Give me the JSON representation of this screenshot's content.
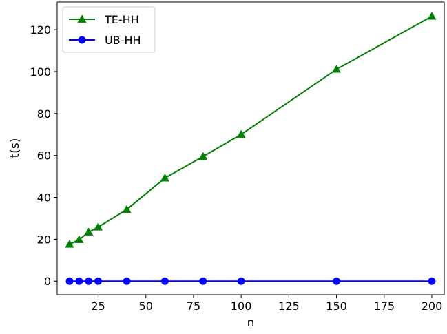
{
  "chart_data": {
    "type": "line",
    "xlabel": "n",
    "ylabel": "t(s)",
    "xlim": [
      3.5,
      206.5
    ],
    "ylim": [
      -6.5,
      133.2
    ],
    "xticks": [
      25,
      50,
      75,
      100,
      125,
      150,
      175,
      200
    ],
    "yticks": [
      0,
      20,
      40,
      60,
      80,
      100,
      120
    ],
    "grid": false,
    "legend_position": "upper-left",
    "series": [
      {
        "name": "TE-HH",
        "color": "#008000",
        "marker": "triangle",
        "x": [
          10,
          15,
          20,
          25,
          40,
          60,
          80,
          100,
          150,
          200
        ],
        "y": [
          17.6,
          19.8,
          23.4,
          25.8,
          34.2,
          49.2,
          59.5,
          70.0,
          101.1,
          126.4
        ]
      },
      {
        "name": "UB-HH",
        "color": "#0000ff",
        "marker": "circle",
        "x": [
          10,
          15,
          20,
          25,
          40,
          60,
          80,
          100,
          150,
          200
        ],
        "y": [
          0,
          0,
          0,
          0,
          0,
          0,
          0,
          0,
          0,
          0
        ]
      }
    ]
  }
}
